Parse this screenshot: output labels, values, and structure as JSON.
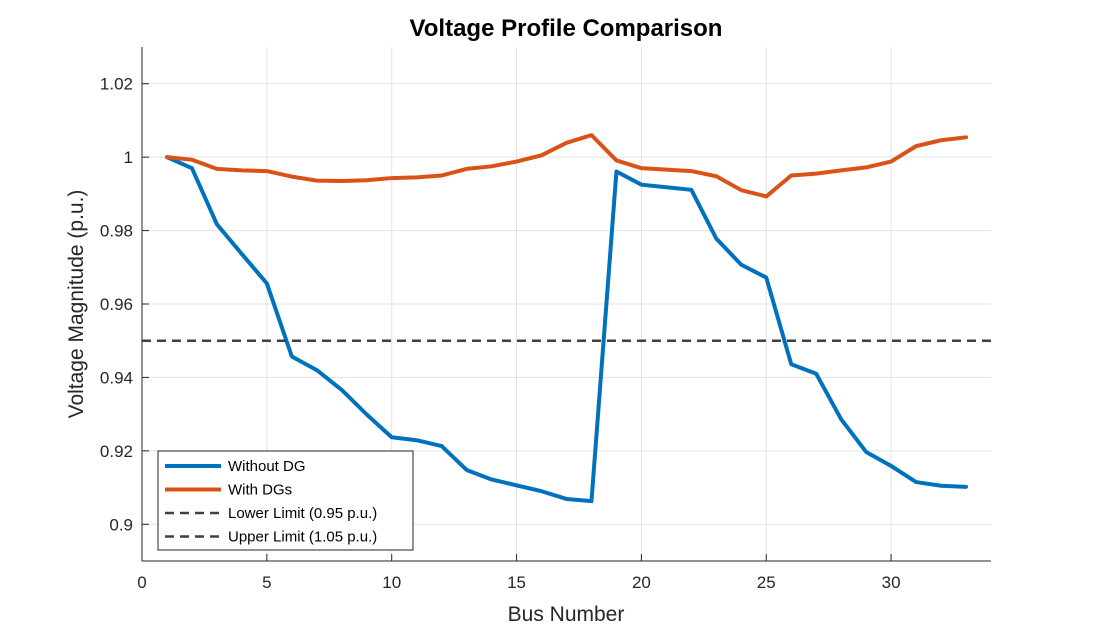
{
  "chart_data": {
    "type": "line",
    "title": "Voltage Profile Comparison",
    "xlabel": "Bus Number",
    "ylabel": "Voltage Magnitude (p.u.)",
    "xlim": [
      0,
      34
    ],
    "ylim": [
      0.89,
      1.03
    ],
    "xticks": [
      0,
      5,
      10,
      15,
      20,
      25,
      30
    ],
    "xtick_labels": [
      "0",
      "5",
      "10",
      "15",
      "20",
      "25",
      "30"
    ],
    "yticks": [
      0.9,
      0.92,
      0.94,
      0.96,
      0.98,
      1.0,
      1.02
    ],
    "ytick_labels": [
      "0.9",
      "0.92",
      "0.94",
      "0.96",
      "0.98",
      "1",
      "1.02"
    ],
    "grid": true,
    "legend_position": "bottom-left",
    "x": [
      1,
      2,
      3,
      4,
      5,
      6,
      7,
      8,
      9,
      10,
      11,
      12,
      13,
      14,
      15,
      16,
      17,
      18,
      19,
      20,
      21,
      22,
      23,
      24,
      25,
      26,
      27,
      28,
      29,
      30,
      31,
      32,
      33
    ],
    "series": [
      {
        "name": "Without DG",
        "color": "#0072BD",
        "style": "solid",
        "values": [
          1.0,
          0.997,
          0.9817,
          0.9736,
          0.9656,
          0.9457,
          0.942,
          0.9366,
          0.9299,
          0.9237,
          0.9229,
          0.9213,
          0.9148,
          0.9122,
          0.9106,
          0.909,
          0.9069,
          0.9063,
          0.9961,
          0.9925,
          0.9918,
          0.9911,
          0.9778,
          0.9707,
          0.9672,
          0.9436,
          0.941,
          0.9286,
          0.9197,
          0.9159,
          0.9115,
          0.9105,
          0.9102
        ]
      },
      {
        "name": "With DGs",
        "color": "#D95319",
        "style": "solid",
        "values": [
          1.0,
          0.9993,
          0.9968,
          0.9964,
          0.9962,
          0.9947,
          0.9936,
          0.9935,
          0.9937,
          0.9943,
          0.9945,
          0.995,
          0.9968,
          0.9975,
          0.9988,
          1.0005,
          1.0039,
          1.006,
          0.9991,
          0.997,
          0.9966,
          0.9962,
          0.9948,
          0.991,
          0.9893,
          0.995,
          0.9955,
          0.9964,
          0.9972,
          0.9988,
          1.003,
          1.0046,
          1.0054
        ]
      },
      {
        "name": "Lower Limit (0.95 p.u.)",
        "color": "#404040",
        "style": "dashed",
        "constant": 0.95
      },
      {
        "name": "Upper Limit (1.05 p.u.)",
        "color": "#404040",
        "style": "dashed",
        "constant": 1.05
      }
    ]
  }
}
